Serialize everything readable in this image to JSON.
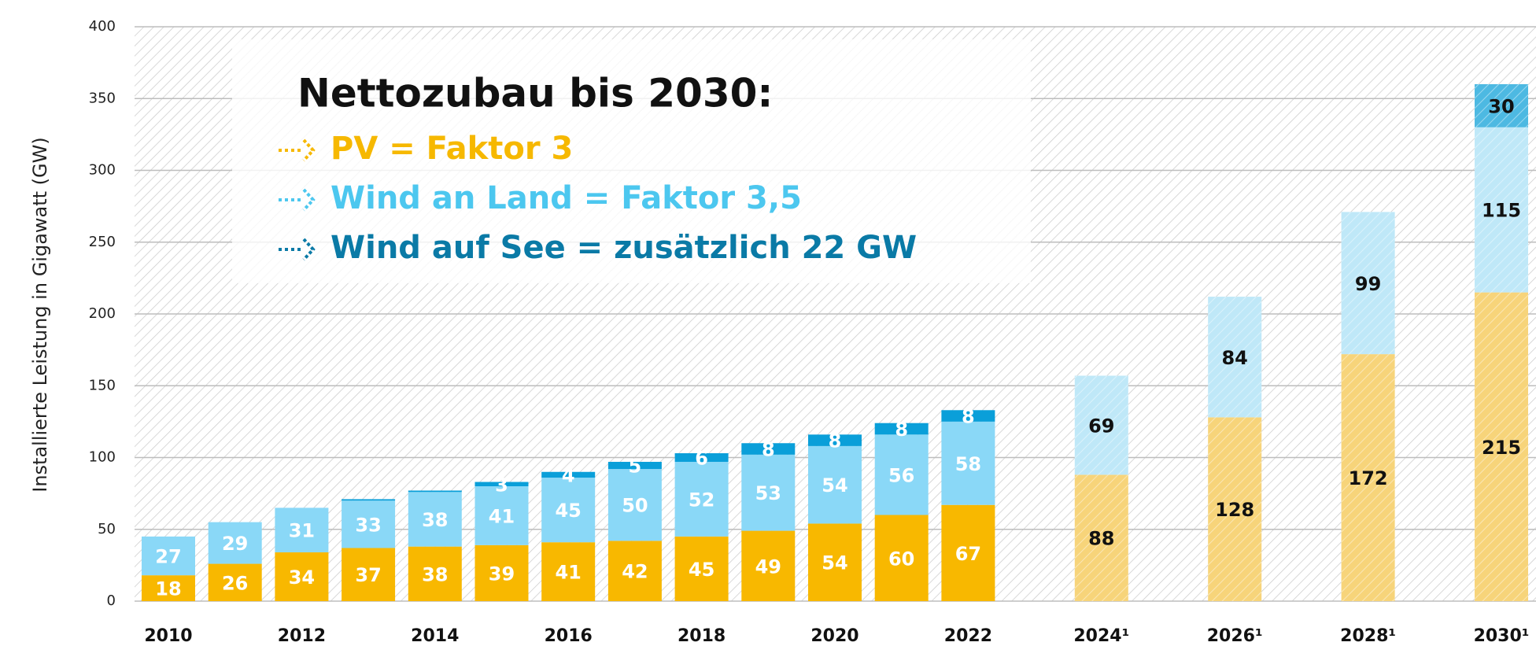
{
  "chart_data": {
    "type": "stacked_bar",
    "y_label": "Installierte Leistung in Gigawatt (GW)",
    "categories": [
      "2010",
      null,
      "2012",
      null,
      "2014",
      null,
      "2016",
      null,
      "2018",
      null,
      "2020",
      null,
      "2022",
      null,
      "2024¹",
      null,
      "2026¹",
      null,
      "2028¹",
      null,
      "2030¹"
    ],
    "projection_from": "2024¹",
    "series": [
      {
        "name": "PV",
        "color": "#f8b800",
        "projected_color": "#f7d47a",
        "values": [
          18,
          26,
          34,
          37,
          38,
          39,
          41,
          42,
          45,
          49,
          54,
          60,
          67,
          null,
          88,
          null,
          128,
          null,
          172,
          null,
          215
        ]
      },
      {
        "name": "Wind an Land",
        "color": "#8ad8f7",
        "projected_color": "#bfe8f8",
        "values": [
          27,
          29,
          31,
          33,
          38,
          41,
          45,
          50,
          52,
          53,
          54,
          56,
          58,
          null,
          69,
          null,
          84,
          null,
          99,
          null,
          115
        ]
      },
      {
        "name": "Wind auf See",
        "color": "#0a9fd9",
        "projected_color": "#4db9e2",
        "values": [
          0,
          0,
          0,
          1,
          1,
          3,
          4,
          5,
          6,
          8,
          8,
          8,
          8,
          null,
          0,
          null,
          0,
          null,
          0,
          null,
          30
        ]
      }
    ],
    "label_color": "#ffffff",
    "projected_label_color": "#111111",
    "ylim": [
      0,
      400
    ],
    "yticks": [
      0,
      50,
      100,
      150,
      200,
      250,
      300,
      350,
      400
    ],
    "grid": true,
    "annotation": {
      "title": "Nettozubau bis 2030:",
      "items": [
        {
          "text": "PV = Faktor 3",
          "color": "#f6b800"
        },
        {
          "text": "Wind an Land = Faktor 3,5",
          "color": "#4cc7ef"
        },
        {
          "text": "Wind auf See = zusätzlich 22 GW",
          "color": "#0a7aa6"
        }
      ]
    }
  }
}
